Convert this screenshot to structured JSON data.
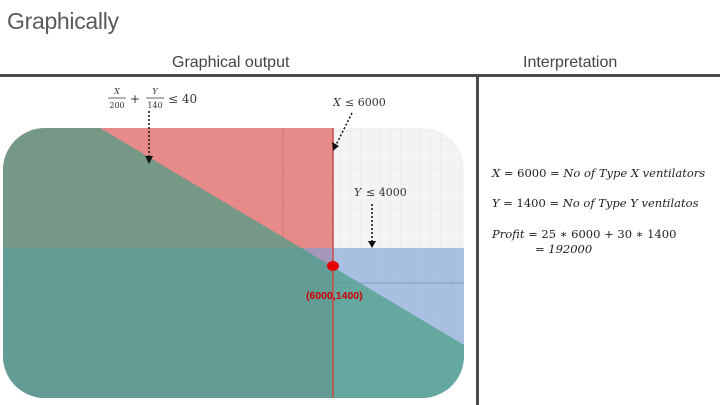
{
  "slide": {
    "title": "Graphically"
  },
  "headers": {
    "left": "Graphical output",
    "right": "Interpretation"
  },
  "chart_annotations": {
    "constraint1": {
      "x_num": "X",
      "x_den": "200",
      "plus": "+",
      "y_num": "Y",
      "y_den": "140",
      "rhs": "≤ 40"
    },
    "constraint2": {
      "var": "X",
      "rhs": "≤ 6000"
    },
    "constraint3": {
      "var": "Y",
      "rhs": "≤ 4000"
    },
    "optimum_label": "(6000,1400)"
  },
  "colors": {
    "region_x": "#e36b6b",
    "region_y": "#7a9fd6",
    "region_c1": "#4a9e86",
    "optimum_point": "#e60000",
    "optimum_label": "#cc0000"
  },
  "interpretation": {
    "line1": {
      "lhs": "X",
      "eq": "= 6000 =",
      "rhs": "No of Type X ventilators"
    },
    "line2": {
      "lhs": "Y",
      "eq": "= 1400 =",
      "rhs": "No of Type Y ventilatos"
    },
    "line3": {
      "lhs": "Profit",
      "eq": "= 25 ∗ 6000 + 30 ∗ 1400"
    },
    "line4": {
      "eq": "= 192000"
    }
  }
}
